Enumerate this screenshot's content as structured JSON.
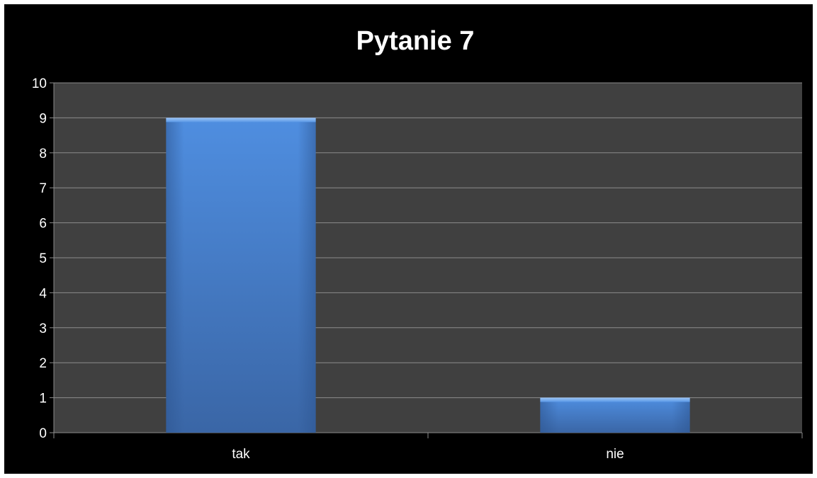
{
  "chart_data": {
    "type": "bar",
    "title": "Pytanie 7",
    "categories": [
      "tak",
      "nie"
    ],
    "values": [
      9,
      1
    ],
    "ylim": [
      0,
      10
    ],
    "yticks": [
      "0",
      "1",
      "2",
      "3",
      "4",
      "5",
      "6",
      "7",
      "8",
      "9",
      "10"
    ],
    "grid": true,
    "legend": "none",
    "colors": {
      "background": "#000000",
      "plot_area": "#404040",
      "gridline": "#8c8c8c",
      "bar": "#4a86d4",
      "text": "#ffffff"
    }
  }
}
